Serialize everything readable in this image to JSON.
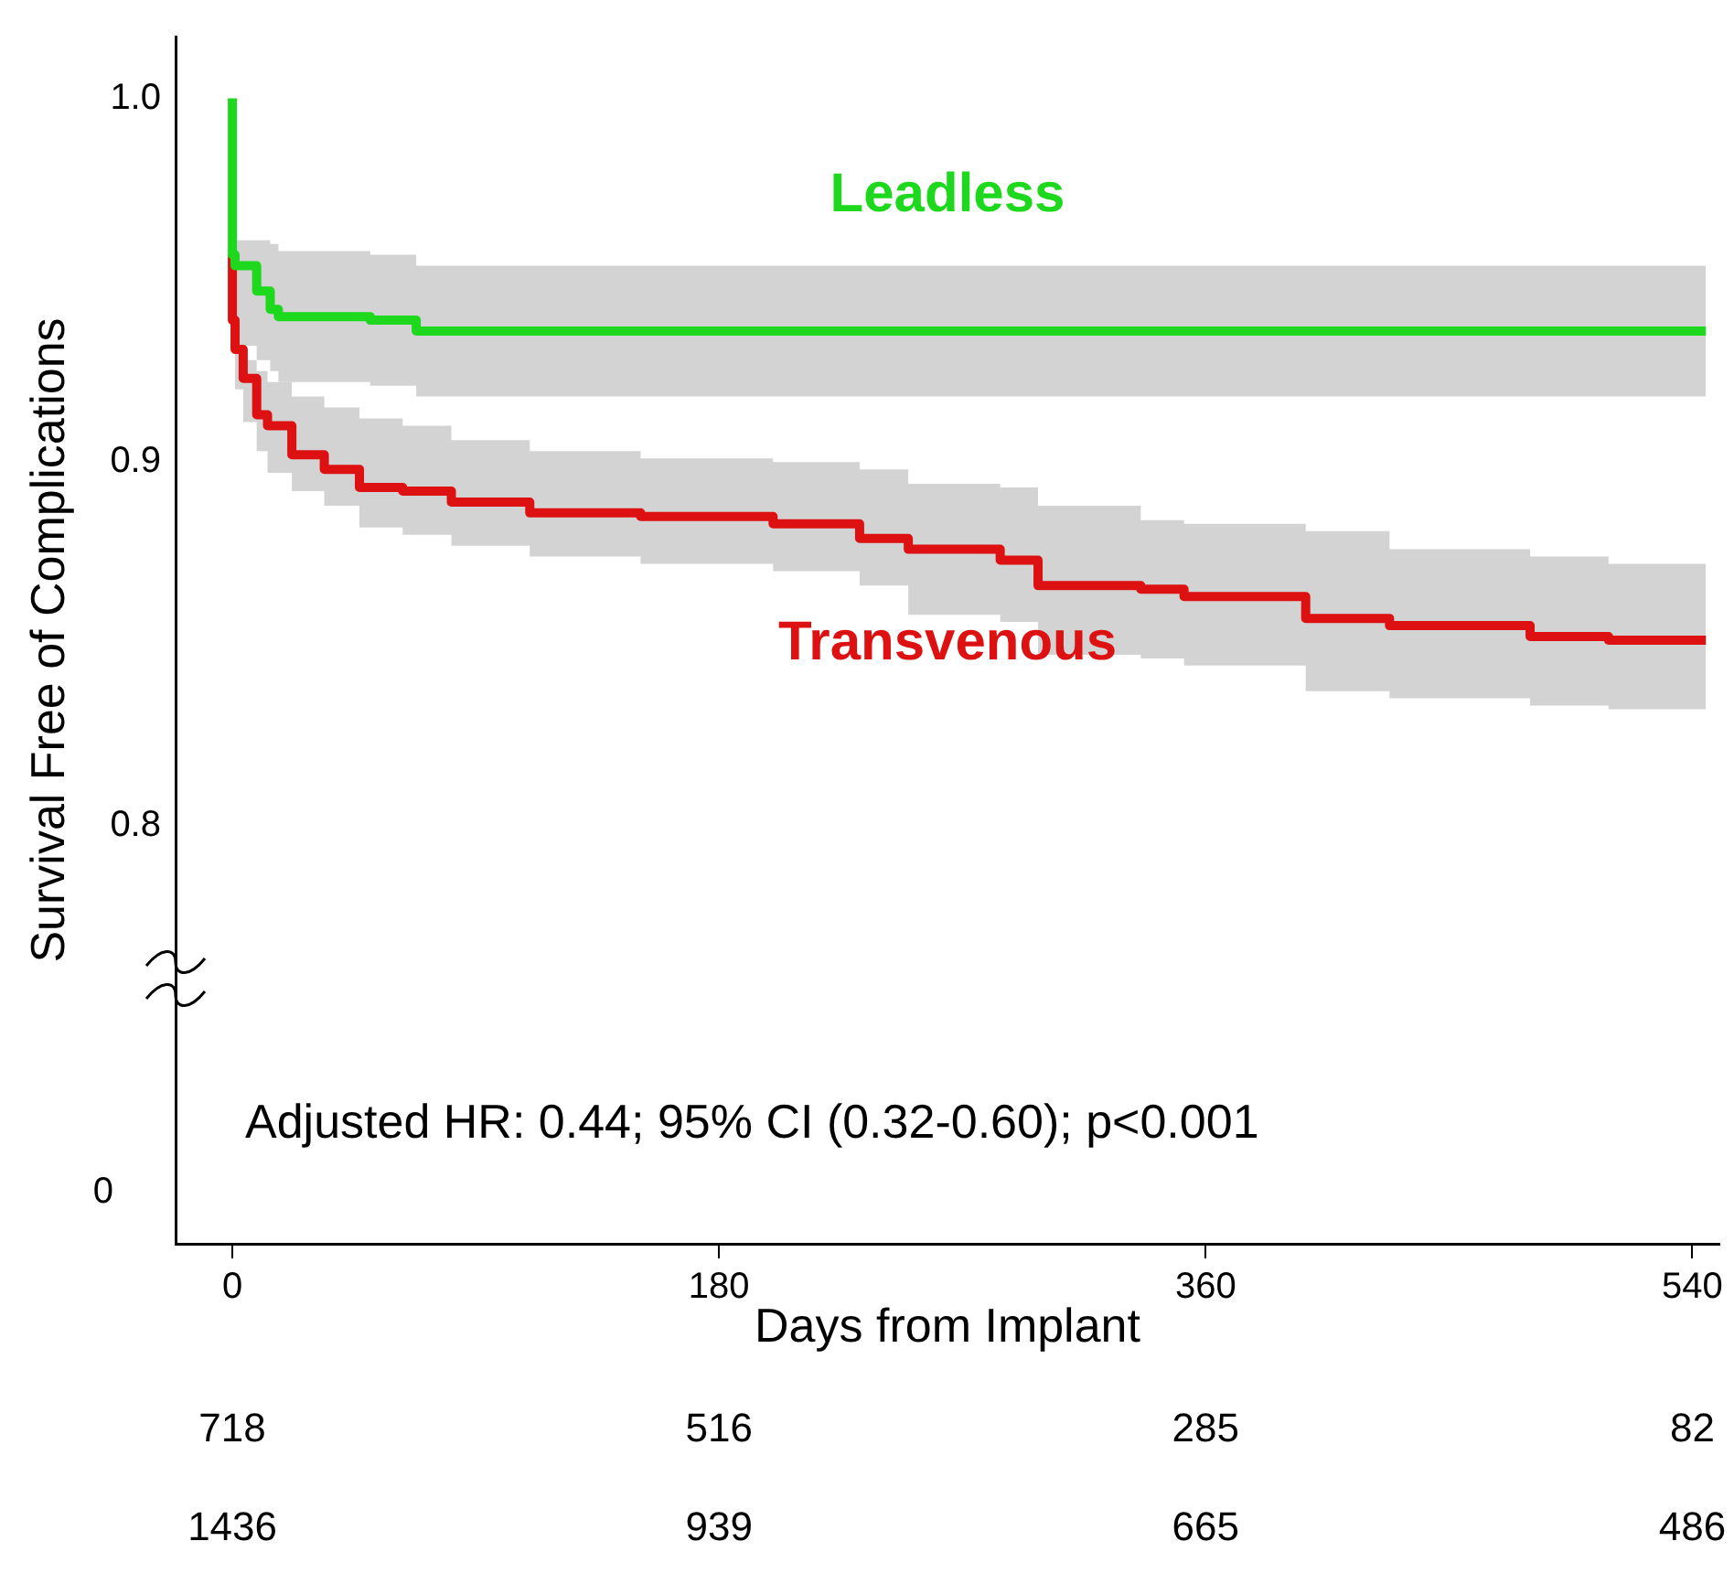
{
  "chart_data": {
    "type": "step",
    "ylabel": "Survival Free of Complications",
    "xlabel": "Days from Implant",
    "xlim": [
      -21,
      550
    ],
    "xticks": [
      0,
      180,
      360,
      540
    ],
    "ylim": [
      0.685,
      1.017
    ],
    "yticks": [
      0.8,
      0.9,
      {
        "value": 1.0,
        "label": "1.0"
      }
    ],
    "grid": false,
    "legend": false,
    "marker": "none",
    "series": [
      {
        "name": "Leadless",
        "color": "#1ed81e",
        "x": [
          0,
          1,
          9,
          14,
          17,
          51,
          68,
          97,
          545
        ],
        "values": [
          1.0,
          0.957,
          0.954,
          0.947,
          0.942,
          0.94,
          0.939,
          0.936,
          0.936
        ],
        "upper": [
          0.969,
          0.969,
          0.961,
          0.961,
          0.96,
          0.958,
          0.957,
          0.954,
          0.954
        ],
        "lower": [
          0.94,
          0.94,
          0.932,
          0.928,
          0.925,
          0.922,
          0.921,
          0.918,
          0.918
        ]
      },
      {
        "name": "Transvenous",
        "color": "#dd1111",
        "x": [
          0,
          1,
          4,
          9,
          13,
          22,
          34,
          47,
          63,
          81,
          110,
          151,
          200,
          232,
          250,
          284,
          298,
          336,
          352,
          397,
          428,
          480,
          509,
          521,
          545
        ],
        "values": [
          0.957,
          0.939,
          0.931,
          0.923,
          0.913,
          0.91,
          0.902,
          0.898,
          0.893,
          0.892,
          0.889,
          0.886,
          0.885,
          0.883,
          0.879,
          0.876,
          0.873,
          0.866,
          0.865,
          0.863,
          0.857,
          0.855,
          0.852,
          0.851,
          0.851
        ],
        "upper": [
          0.957,
          0.95,
          0.935,
          0.928,
          0.925,
          0.922,
          0.918,
          0.915,
          0.912,
          0.91,
          0.906,
          0.903,
          0.901,
          0.9,
          0.898,
          0.894,
          0.893,
          0.888,
          0.884,
          0.883,
          0.881,
          0.876,
          0.874,
          0.872,
          0.872
        ],
        "lower": [
          0.957,
          0.93,
          0.92,
          0.911,
          0.903,
          0.897,
          0.892,
          0.888,
          0.882,
          0.88,
          0.877,
          0.874,
          0.872,
          0.87,
          0.866,
          0.858,
          0.856,
          0.847,
          0.846,
          0.844,
          0.837,
          0.835,
          0.833,
          0.832,
          0.832
        ]
      }
    ],
    "annotations": [
      "0",
      "Adjusted HR: 0.44; 95% CI (0.32-0.60); p<0.001",
      "718",
      "516",
      "285",
      "82",
      "1436",
      "939",
      "665",
      "486"
    ]
  }
}
